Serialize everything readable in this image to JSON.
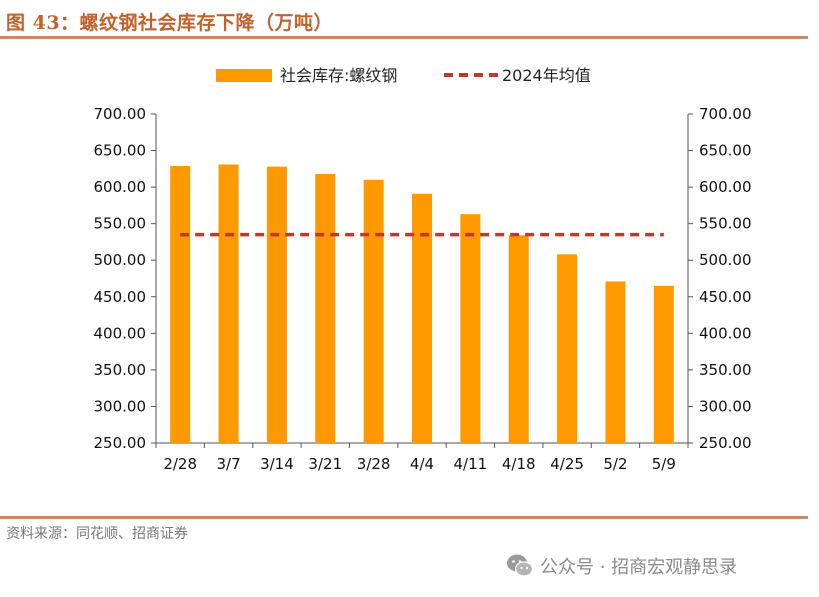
{
  "figure": {
    "title": "图 43：螺纹钢社会库存下降（万吨）",
    "source": "资料来源：同花顺、招商证券",
    "watermark": "公众号 · 招商宏观静思录",
    "watermark_icon": "wechat-icon"
  },
  "colors": {
    "bar": "#FF9900",
    "avg_line": "#C0392B",
    "rule": "#c98a69",
    "title": "#c0622c"
  },
  "chart_data": {
    "type": "bar",
    "categories": [
      "2/28",
      "3/7",
      "3/14",
      "3/21",
      "3/28",
      "4/4",
      "4/11",
      "4/18",
      "4/25",
      "5/2",
      "5/9"
    ],
    "series": [
      {
        "name": "社会库存:螺纹钢",
        "type": "bar",
        "values": [
          629,
          631,
          628,
          618,
          610,
          591,
          563,
          534,
          508,
          471,
          465
        ]
      },
      {
        "name": "2024年均值",
        "type": "line",
        "style": "dashed",
        "values": [
          535,
          535,
          535,
          535,
          535,
          535,
          535,
          535,
          535,
          535,
          535
        ]
      }
    ],
    "ylim": [
      250,
      700
    ],
    "yticks": [
      "250.00",
      "300.00",
      "350.00",
      "400.00",
      "450.00",
      "500.00",
      "550.00",
      "600.00",
      "650.00",
      "700.00"
    ],
    "ylim_right": [
      250,
      700
    ],
    "yticks_right": [
      "250.00",
      "300.00",
      "350.00",
      "400.00",
      "450.00",
      "500.00",
      "550.00",
      "600.00",
      "650.00",
      "700.00"
    ],
    "legend_position": "top-center",
    "grid": false
  }
}
